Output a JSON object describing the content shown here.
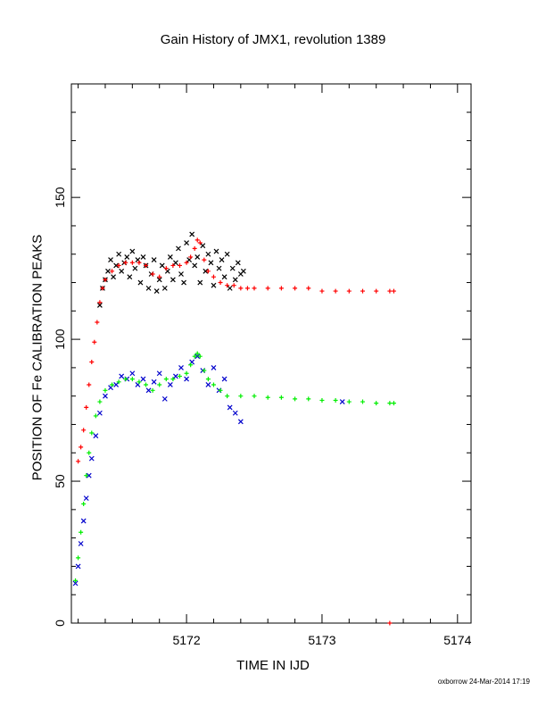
{
  "chart_data": {
    "type": "scatter",
    "title": "Gain History of JMX1, revolution 1389",
    "xlabel": "TIME IN IJD",
    "ylabel": "POSITION OF Fe CALIBRATION PEAKS",
    "xlim": [
      5171.15,
      5174.1
    ],
    "ylim": [
      0,
      190
    ],
    "xticks": [
      5172,
      5173,
      5174
    ],
    "yticks": [
      0,
      50,
      100,
      150
    ],
    "grid": false,
    "legend": "none",
    "colors": {
      "upper_raw": "#000000",
      "upper_fit": "#ff0000",
      "lower_raw": "#0000cc",
      "lower_fit": "#00ee00",
      "axis": "#000000"
    },
    "series": [
      {
        "marker": "x",
        "color": "#000000",
        "x": [
          5171.36,
          5171.38,
          5171.4,
          5171.42,
          5171.44,
          5171.46,
          5171.48,
          5171.5,
          5171.52,
          5171.54,
          5171.56,
          5171.58,
          5171.6,
          5171.62,
          5171.64,
          5171.66,
          5171.68,
          5171.7,
          5171.72,
          5171.74,
          5171.76,
          5171.78,
          5171.8,
          5171.82,
          5171.84,
          5171.86,
          5171.88,
          5171.9,
          5171.92,
          5171.94,
          5171.96,
          5171.98,
          5172.0,
          5172.02,
          5172.04,
          5172.06,
          5172.08,
          5172.1,
          5172.12,
          5172.14,
          5172.16,
          5172.18,
          5172.2,
          5172.22,
          5172.24,
          5172.26,
          5172.28,
          5172.3,
          5172.32,
          5172.34,
          5172.36,
          5172.38,
          5172.4,
          5172.42
        ],
        "y": [
          112,
          118,
          121,
          124,
          128,
          122,
          126,
          130,
          124,
          127,
          129,
          122,
          131,
          125,
          128,
          120,
          129,
          126,
          118,
          123,
          128,
          117,
          121,
          126,
          118,
          124,
          129,
          121,
          127,
          132,
          123,
          120,
          134,
          128,
          137,
          126,
          129,
          120,
          133,
          124,
          130,
          127,
          119,
          131,
          125,
          128,
          122,
          130,
          118,
          125,
          121,
          127,
          123,
          124
        ]
      },
      {
        "marker": "+",
        "color": "#ff0000",
        "x": [
          5171.2,
          5171.22,
          5171.24,
          5171.26,
          5171.28,
          5171.3,
          5171.32,
          5171.34,
          5171.36,
          5171.38,
          5171.4,
          5171.45,
          5171.5,
          5171.55,
          5171.6,
          5171.65,
          5171.7,
          5171.75,
          5171.8,
          5171.85,
          5171.9,
          5171.95,
          5172.0,
          5172.03,
          5172.06,
          5172.08,
          5172.1,
          5172.13,
          5172.16,
          5172.2,
          5172.25,
          5172.3,
          5172.35,
          5172.4,
          5172.45,
          5172.5,
          5172.6,
          5172.7,
          5172.8,
          5172.9,
          5173.0,
          5173.1,
          5173.2,
          5173.3,
          5173.4,
          5173.5,
          5173.53
        ],
        "y": [
          57,
          62,
          68,
          76,
          84,
          92,
          99,
          106,
          113,
          118,
          121,
          124,
          126,
          127,
          127,
          127,
          126,
          123,
          122,
          125,
          126,
          126,
          127,
          129,
          132,
          135,
          134,
          128,
          124,
          122,
          120,
          119,
          119,
          118,
          118,
          118,
          118,
          118,
          118,
          118,
          117,
          117,
          117,
          117,
          117,
          117,
          117
        ]
      },
      {
        "marker": "x",
        "color": "#0000cc",
        "x": [
          5171.18,
          5171.2,
          5171.22,
          5171.24,
          5171.26,
          5171.28,
          5171.3,
          5171.33,
          5171.36,
          5171.4,
          5171.44,
          5171.48,
          5171.52,
          5171.56,
          5171.6,
          5171.64,
          5171.68,
          5171.72,
          5171.76,
          5171.8,
          5171.84,
          5171.88,
          5171.92,
          5171.96,
          5172.0,
          5172.04,
          5172.08,
          5172.12,
          5172.16,
          5172.2,
          5172.24,
          5172.28,
          5172.32,
          5172.36,
          5172.4,
          5173.15
        ],
        "y": [
          14,
          20,
          28,
          36,
          44,
          52,
          58,
          66,
          74,
          80,
          83,
          84,
          87,
          86,
          88,
          84,
          86,
          82,
          85,
          88,
          79,
          84,
          87,
          90,
          86,
          92,
          94,
          89,
          84,
          90,
          82,
          86,
          76,
          74,
          71,
          78
        ]
      },
      {
        "marker": "+",
        "color": "#00ee00",
        "x": [
          5171.18,
          5171.2,
          5171.22,
          5171.24,
          5171.26,
          5171.28,
          5171.3,
          5171.33,
          5171.36,
          5171.4,
          5171.45,
          5171.5,
          5171.55,
          5171.6,
          5171.65,
          5171.7,
          5171.75,
          5171.8,
          5171.85,
          5171.9,
          5171.95,
          5172.0,
          5172.03,
          5172.06,
          5172.08,
          5172.1,
          5172.13,
          5172.16,
          5172.2,
          5172.25,
          5172.3,
          5172.4,
          5172.5,
          5172.6,
          5172.7,
          5172.8,
          5172.9,
          5173.0,
          5173.1,
          5173.2,
          5173.3,
          5173.4,
          5173.5,
          5173.53
        ],
        "y": [
          15,
          23,
          32,
          42,
          52,
          60,
          67,
          73,
          78,
          82,
          84,
          85,
          86,
          86,
          85,
          84,
          82,
          84,
          86,
          86,
          87,
          88,
          91,
          94,
          95,
          94,
          89,
          86,
          84,
          82,
          80,
          80,
          80,
          79.5,
          79.5,
          79,
          79,
          78.5,
          78.5,
          78,
          78,
          77.5,
          77.5,
          77.5
        ]
      },
      {
        "marker": "+",
        "color": "#ff0000",
        "x": [
          5173.5
        ],
        "y": [
          0
        ]
      }
    ],
    "footer": "oxborrow 24-Mar-2014 17:19"
  }
}
